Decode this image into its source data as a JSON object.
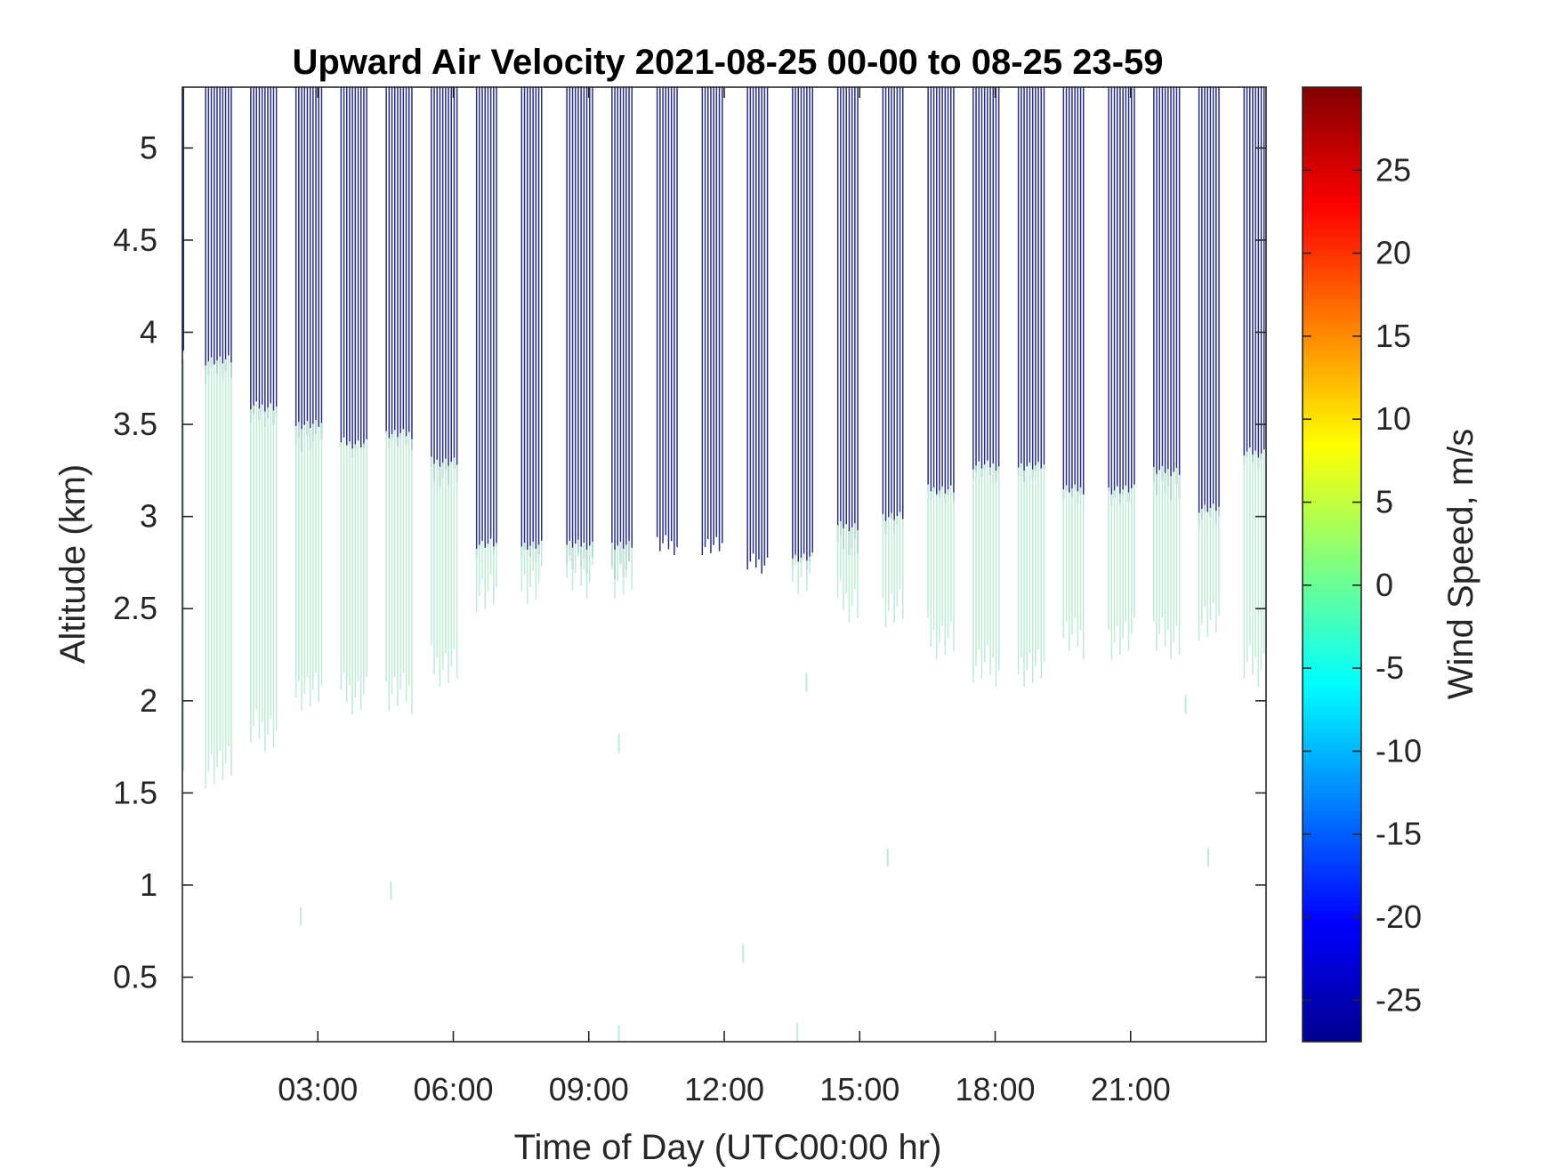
{
  "chart_data": {
    "type": "heatmap",
    "title": "Upward Air Velocity 2021-08-25 00-00 to 08-25 23-59",
    "xlabel": "Time of Day (UTC00:00 hr)",
    "ylabel": "Altitude (km)",
    "colorbar_label": "Wind Speed, m/s",
    "xlim_hours": [
      0,
      24
    ],
    "ylim_km": [
      0.15,
      5.33
    ],
    "x_ticks": [
      {
        "value": 3,
        "label": "03:00"
      },
      {
        "value": 6,
        "label": "06:00"
      },
      {
        "value": 9,
        "label": "09:00"
      },
      {
        "value": 12,
        "label": "12:00"
      },
      {
        "value": 15,
        "label": "15:00"
      },
      {
        "value": 18,
        "label": "18:00"
      },
      {
        "value": 21,
        "label": "21:00"
      }
    ],
    "y_ticks": [
      {
        "value": 0.5,
        "label": "0.5"
      },
      {
        "value": 1,
        "label": "1"
      },
      {
        "value": 1.5,
        "label": "1.5"
      },
      {
        "value": 2,
        "label": "2"
      },
      {
        "value": 2.5,
        "label": "2.5"
      },
      {
        "value": 3,
        "label": "3"
      },
      {
        "value": 3.5,
        "label": "3.5"
      },
      {
        "value": 4,
        "label": "4"
      },
      {
        "value": 4.5,
        "label": "4.5"
      },
      {
        "value": 5,
        "label": "5"
      }
    ],
    "colorbar": {
      "colormap": "jet",
      "clim": [
        -27.5,
        30
      ],
      "ticks": [
        {
          "value": 25,
          "label": "25"
        },
        {
          "value": 20,
          "label": "20"
        },
        {
          "value": 15,
          "label": "15"
        },
        {
          "value": 10,
          "label": "10"
        },
        {
          "value": 5,
          "label": "5"
        },
        {
          "value": 0,
          "label": "0"
        },
        {
          "value": -5,
          "label": "-5"
        },
        {
          "value": -10,
          "label": "-10"
        },
        {
          "value": -15,
          "label": "-15"
        },
        {
          "value": -20,
          "label": "-20"
        },
        {
          "value": -25,
          "label": "-25"
        }
      ]
    },
    "colors": {
      "downward_band": "#2a2f7a",
      "near_zero_band": "#bfead6"
    },
    "bursts": [
      {
        "start_hr": 0.5,
        "end_hr": 1.1,
        "green_bottom_km": 1.65,
        "green_top_km": 3.85,
        "blue_bottom_km": 3.78,
        "speed_ms": 1.5
      },
      {
        "start_hr": 1.5,
        "end_hr": 2.1,
        "green_bottom_km": 1.85,
        "green_top_km": 3.6,
        "blue_bottom_km": 3.55,
        "speed_ms": 1.5
      },
      {
        "start_hr": 2.5,
        "end_hr": 3.1,
        "green_bottom_km": 2.05,
        "green_top_km": 3.5,
        "blue_bottom_km": 3.4,
        "speed_ms": 1.5
      },
      {
        "start_hr": 3.5,
        "end_hr": 4.1,
        "green_bottom_km": 2.05,
        "green_top_km": 3.4,
        "blue_bottom_km": 3.38,
        "speed_ms": 1.5
      },
      {
        "start_hr": 4.5,
        "end_hr": 5.1,
        "green_bottom_km": 2.05,
        "green_top_km": 3.45,
        "blue_bottom_km": 3.42,
        "speed_ms": 1.5
      },
      {
        "start_hr": 5.5,
        "end_hr": 6.1,
        "green_bottom_km": 2.2,
        "green_top_km": 3.3,
        "blue_bottom_km": 3.22,
        "speed_ms": 1.5
      },
      {
        "start_hr": 6.5,
        "end_hr": 7.0,
        "green_bottom_km": 2.58,
        "green_top_km": 2.85,
        "blue_bottom_km": 2.83,
        "speed_ms": 1.5
      },
      {
        "start_hr": 7.5,
        "end_hr": 8.0,
        "green_bottom_km": 2.65,
        "green_top_km": 2.85,
        "blue_bottom_km": 2.8,
        "speed_ms": 1.5
      },
      {
        "start_hr": 8.5,
        "end_hr": 9.1,
        "green_bottom_km": 2.68,
        "green_top_km": 2.85,
        "blue_bottom_km": 2.75,
        "speed_ms": 1.5
      },
      {
        "start_hr": 9.5,
        "end_hr": 10.0,
        "green_bottom_km": 2.68,
        "green_top_km": 2.85,
        "blue_bottom_km": 2.72,
        "speed_ms": 1.5
      },
      {
        "start_hr": 10.5,
        "end_hr": 11.0,
        "green_bottom_km": 0,
        "green_top_km": 0,
        "blue_bottom_km": 2.85,
        "speed_ms": 1.5
      },
      {
        "start_hr": 11.5,
        "end_hr": 12.0,
        "green_bottom_km": 0,
        "green_top_km": 0,
        "blue_bottom_km": 2.85,
        "speed_ms": 1.5
      },
      {
        "start_hr": 12.5,
        "end_hr": 13.0,
        "green_bottom_km": 0,
        "green_top_km": 0,
        "blue_bottom_km": 2.75,
        "speed_ms": 1.5
      },
      {
        "start_hr": 13.5,
        "end_hr": 14.0,
        "green_bottom_km": 2.68,
        "green_top_km": 2.78,
        "blue_bottom_km": 2.75,
        "speed_ms": 1.5
      },
      {
        "start_hr": 14.5,
        "end_hr": 15.0,
        "green_bottom_km": 2.55,
        "green_top_km": 2.95,
        "blue_bottom_km": 2.85,
        "speed_ms": 1.5
      },
      {
        "start_hr": 15.5,
        "end_hr": 16.0,
        "green_bottom_km": 2.5,
        "green_top_km": 3.0,
        "blue_bottom_km": 2.95,
        "speed_ms": 1.5
      },
      {
        "start_hr": 16.5,
        "end_hr": 17.1,
        "green_bottom_km": 2.35,
        "green_top_km": 3.15,
        "blue_bottom_km": 3.12,
        "speed_ms": 1.5
      },
      {
        "start_hr": 17.5,
        "end_hr": 18.1,
        "green_bottom_km": 2.2,
        "green_top_km": 3.28,
        "blue_bottom_km": 3.25,
        "speed_ms": 1.5
      },
      {
        "start_hr": 18.5,
        "end_hr": 19.1,
        "green_bottom_km": 2.2,
        "green_top_km": 3.28,
        "blue_bottom_km": 3.25,
        "speed_ms": 1.5
      },
      {
        "start_hr": 19.5,
        "end_hr": 20.0,
        "green_bottom_km": 2.35,
        "green_top_km": 3.15,
        "blue_bottom_km": 3.1,
        "speed_ms": 1.5
      },
      {
        "start_hr": 20.5,
        "end_hr": 21.1,
        "green_bottom_km": 2.35,
        "green_top_km": 3.15,
        "blue_bottom_km": 3.12,
        "speed_ms": 1.5
      },
      {
        "start_hr": 21.5,
        "end_hr": 22.1,
        "green_bottom_km": 2.35,
        "green_top_km": 3.25,
        "blue_bottom_km": 3.15,
        "speed_ms": 1.5
      },
      {
        "start_hr": 22.5,
        "end_hr": 23.0,
        "green_bottom_km": 2.45,
        "green_top_km": 3.05,
        "blue_bottom_km": 3.0,
        "speed_ms": 1.5
      },
      {
        "start_hr": 23.5,
        "end_hr": 24.0,
        "green_bottom_km": 2.2,
        "green_top_km": 3.35,
        "blue_bottom_km": 3.32,
        "speed_ms": 1.5
      }
    ],
    "isolated_points": [
      {
        "hr": 2.6,
        "alt_bottom_km": 0.78,
        "alt_top_km": 0.88
      },
      {
        "hr": 4.6,
        "alt_bottom_km": 0.92,
        "alt_top_km": 1.02
      },
      {
        "hr": 9.65,
        "alt_bottom_km": 1.72,
        "alt_top_km": 1.82
      },
      {
        "hr": 9.65,
        "alt_bottom_km": 0.15,
        "alt_top_km": 0.24
      },
      {
        "hr": 12.4,
        "alt_bottom_km": 0.58,
        "alt_top_km": 0.68
      },
      {
        "hr": 13.6,
        "alt_bottom_km": 0.15,
        "alt_top_km": 0.25
      },
      {
        "hr": 13.8,
        "alt_bottom_km": 2.05,
        "alt_top_km": 2.15
      },
      {
        "hr": 15.6,
        "alt_bottom_km": 1.1,
        "alt_top_km": 1.2
      },
      {
        "hr": 22.2,
        "alt_bottom_km": 1.93,
        "alt_top_km": 2.03
      },
      {
        "hr": 22.7,
        "alt_bottom_km": 1.1,
        "alt_top_km": 1.2
      }
    ]
  }
}
